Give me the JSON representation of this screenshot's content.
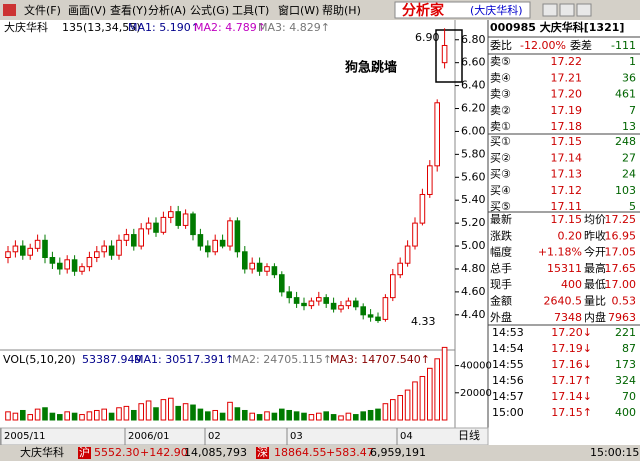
{
  "menu": {
    "items": [
      "文件(F)",
      "画面(V)",
      "查看(Y)",
      "分析(A)",
      "公式(G)",
      "工具(T)",
      "窗口(W)",
      "帮助(H)"
    ],
    "logo": "分析家",
    "logo_sub": "(大庆华科)"
  },
  "chart_data": {
    "type": "candlestick",
    "stock": "大庆华科",
    "indicator": "135(13,34,55)",
    "ma_labels": [
      "MA1: 5.190↑",
      "MA2: 4.789↑",
      "MA3: 4.829↑"
    ],
    "annotation": "狗急跳墙",
    "high_label": "6.90",
    "low_label": "4.33",
    "ylim": [
      4.25,
      6.92
    ],
    "yticks": [
      {
        "value": 4.4,
        "label": "4.40"
      },
      {
        "value": 4.6,
        "label": "4.60"
      },
      {
        "value": 4.8,
        "label": "4.80"
      },
      {
        "value": 5,
        "label": "5.00"
      },
      {
        "value": 5.2,
        "label": "5.20"
      },
      {
        "value": 5.4,
        "label": "5.40"
      },
      {
        "value": 5.6,
        "label": "5.60"
      },
      {
        "value": 5.8,
        "label": "5.80"
      },
      {
        "value": 6,
        "label": "6.00"
      },
      {
        "value": 6.2,
        "label": "6.20"
      },
      {
        "value": 6.4,
        "label": "6.40"
      },
      {
        "value": 6.6,
        "label": "6.60"
      },
      {
        "value": 6.8,
        "label": "6.80"
      }
    ],
    "up_color": "#e00000",
    "down_color": "#007a00",
    "open": [
      4.9,
      4.95,
      5.0,
      4.92,
      4.98,
      5.05,
      4.9,
      4.85,
      4.8,
      4.88,
      4.78,
      4.82,
      4.9,
      4.95,
      5.0,
      4.92,
      5.05,
      5.1,
      5.0,
      5.15,
      5.2,
      5.12,
      5.25,
      5.3,
      5.18,
      5.28,
      5.1,
      5.0,
      4.95,
      5.05,
      5.0,
      5.22,
      4.95,
      4.8,
      4.85,
      4.78,
      4.82,
      4.75,
      4.6,
      4.55,
      4.5,
      4.48,
      4.52,
      4.55,
      4.5,
      4.45,
      4.48,
      4.52,
      4.47,
      4.4,
      4.38,
      4.36,
      4.55,
      4.75,
      4.85,
      5.0,
      5.2,
      5.45,
      5.7,
      6.6
    ],
    "high": [
      5.0,
      5.05,
      5.05,
      5.02,
      5.1,
      5.1,
      4.95,
      4.9,
      4.92,
      4.92,
      4.85,
      4.95,
      5.0,
      5.05,
      5.05,
      5.1,
      5.15,
      5.15,
      5.2,
      5.25,
      5.25,
      5.3,
      5.35,
      5.35,
      5.32,
      5.3,
      5.15,
      5.05,
      5.1,
      5.1,
      5.25,
      5.25,
      5.0,
      4.9,
      4.9,
      4.85,
      4.85,
      4.78,
      4.65,
      4.6,
      4.55,
      4.55,
      4.6,
      4.58,
      4.55,
      4.52,
      4.55,
      4.55,
      4.5,
      4.45,
      4.42,
      4.58,
      4.8,
      4.9,
      5.05,
      5.25,
      5.5,
      5.75,
      6.28,
      6.9
    ],
    "low": [
      4.85,
      4.9,
      4.88,
      4.88,
      4.95,
      4.85,
      4.8,
      4.75,
      4.76,
      4.74,
      4.75,
      4.78,
      4.86,
      4.9,
      4.88,
      4.88,
      5.0,
      4.96,
      4.97,
      5.1,
      5.08,
      5.1,
      5.2,
      5.15,
      5.15,
      5.05,
      4.96,
      4.9,
      4.92,
      4.98,
      4.96,
      4.9,
      4.76,
      4.76,
      4.74,
      4.74,
      4.72,
      4.56,
      4.5,
      4.46,
      4.44,
      4.45,
      4.48,
      4.46,
      4.42,
      4.42,
      4.45,
      4.44,
      4.36,
      4.34,
      4.33,
      4.34,
      4.52,
      4.72,
      4.82,
      4.97,
      5.18,
      5.42,
      5.65,
      6.55
    ],
    "close": [
      4.95,
      5.0,
      4.92,
      4.98,
      5.05,
      4.9,
      4.85,
      4.8,
      4.88,
      4.78,
      4.82,
      4.9,
      4.95,
      5.0,
      4.92,
      5.05,
      5.1,
      5.0,
      5.15,
      5.2,
      5.12,
      5.25,
      5.3,
      5.18,
      5.28,
      5.1,
      5.0,
      4.95,
      5.05,
      5.0,
      5.22,
      4.95,
      4.8,
      4.85,
      4.78,
      4.82,
      4.75,
      4.6,
      4.55,
      4.5,
      4.48,
      4.52,
      4.55,
      4.5,
      4.45,
      4.48,
      4.52,
      4.47,
      4.4,
      4.38,
      4.35,
      4.55,
      4.75,
      4.85,
      5.0,
      5.2,
      5.45,
      5.7,
      6.25,
      6.75
    ],
    "volume": {
      "title": "VOL(5,10,20)",
      "current": "53387.949",
      "ma_labels": [
        "MA1: 30517.391↑",
        "MA2: 24705.115↑",
        "MA3: 14707.540↑"
      ],
      "ylim": [
        0,
        50000
      ],
      "yticks": [
        20000,
        40000
      ],
      "values": [
        6000,
        5000,
        7000,
        4000,
        8000,
        9000,
        5000,
        4000,
        6000,
        5000,
        4000,
        6000,
        7000,
        8000,
        5000,
        9000,
        10000,
        7000,
        12000,
        14000,
        9000,
        15000,
        16000,
        10000,
        12000,
        11000,
        8000,
        6000,
        7000,
        5000,
        13000,
        9000,
        7000,
        5000,
        4000,
        6000,
        5000,
        8000,
        7000,
        6000,
        5000,
        4000,
        5000,
        6000,
        4000,
        3000,
        5000,
        4000,
        6000,
        7000,
        8000,
        12000,
        15000,
        18000,
        22000,
        28000,
        32000,
        38000,
        45000,
        53387.949
      ]
    },
    "date_labels": [
      "2005/11",
      "2006/01",
      "02",
      "03",
      "04"
    ],
    "period": "日线"
  },
  "quote": {
    "header": "000985 大庆华科[1321]",
    "ratio": [
      "委比",
      "-12.00%",
      "委差",
      "-111"
    ],
    "sell": [
      [
        "卖⑤",
        "17.22",
        "1"
      ],
      [
        "卖④",
        "17.21",
        "36"
      ],
      [
        "卖③",
        "17.20",
        "461"
      ],
      [
        "卖②",
        "17.19",
        "7"
      ],
      [
        "卖①",
        "17.18",
        "13"
      ]
    ],
    "buy": [
      [
        "买①",
        "17.15",
        "248"
      ],
      [
        "买②",
        "17.14",
        "27"
      ],
      [
        "买③",
        "17.13",
        "24"
      ],
      [
        "买④",
        "17.12",
        "103"
      ],
      [
        "买⑤",
        "17.11",
        "5"
      ]
    ],
    "stats": [
      [
        "最新",
        "17.15",
        "均价",
        "17.25"
      ],
      [
        "涨跌",
        "0.20",
        "昨收",
        "16.95"
      ],
      [
        "幅度",
        "+1.18%",
        "今开",
        "17.05"
      ],
      [
        "总手",
        "15311",
        "最高",
        "17.65"
      ],
      [
        "现手",
        "400",
        "最低",
        "17.00"
      ],
      [
        "金额",
        "2640.5",
        "量比",
        "0.53"
      ],
      [
        "外盘",
        "7348",
        "内盘",
        "7963"
      ]
    ],
    "ticks": [
      [
        "14:53",
        "17.20↓",
        "221"
      ],
      [
        "14:54",
        "17.19↓",
        "87"
      ],
      [
        "14:55",
        "17.16↓",
        "173"
      ],
      [
        "14:56",
        "17.17↑",
        "324"
      ],
      [
        "14:57",
        "17.14↓",
        "70"
      ],
      [
        "15:00",
        "17.15↑",
        "400"
      ]
    ]
  },
  "status": {
    "stock": "大庆华科",
    "sh": "沪",
    "sh_index": "5552.30",
    "sh_change": "+142.90",
    "sh_volume": "14,085,793",
    "sz": "深",
    "sz_index": "18864.55",
    "sz_change": "+583.47",
    "sz_volume": "6,959,191",
    "time": "15:00:15"
  }
}
